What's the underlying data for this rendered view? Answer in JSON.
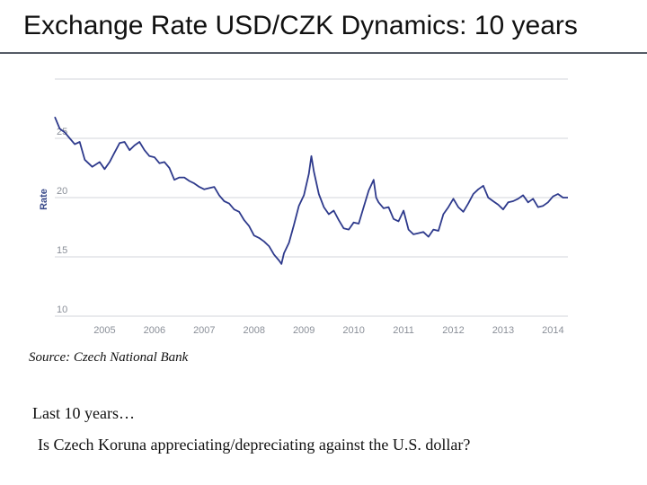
{
  "slide": {
    "title": "Exchange Rate USD/CZK Dynamics: 10 years",
    "source": "Source: Czech National Bank",
    "lines": [
      "Last 10 years…",
      "Is Czech Koruna appreciating/depreciating against the U.S. dollar?"
    ]
  },
  "colors": {
    "series": "#2e3a8c",
    "grid": "#d3d6db",
    "title_rule": "#555b66"
  },
  "chart_data": {
    "type": "line",
    "title": "",
    "xlabel": "",
    "ylabel": "Rate",
    "xlim": [
      2004.0,
      2014.3
    ],
    "ylim": [
      10,
      30
    ],
    "yticks": [
      10,
      15,
      20,
      25
    ],
    "xticks": [
      2005,
      2006,
      2007,
      2008,
      2009,
      2010,
      2011,
      2012,
      2013,
      2014
    ],
    "grid": "horizontal",
    "legend": "none",
    "series": [
      {
        "name": "",
        "x": [
          2004.0,
          2004.1,
          2004.2,
          2004.3,
          2004.4,
          2004.5,
          2004.6,
          2004.75,
          2004.9,
          2005.0,
          2005.1,
          2005.2,
          2005.3,
          2005.4,
          2005.5,
          2005.6,
          2005.7,
          2005.8,
          2005.9,
          2006.0,
          2006.1,
          2006.2,
          2006.3,
          2006.4,
          2006.5,
          2006.6,
          2006.7,
          2006.8,
          2006.9,
          2007.0,
          2007.1,
          2007.2,
          2007.3,
          2007.4,
          2007.5,
          2007.6,
          2007.7,
          2007.8,
          2007.9,
          2008.0,
          2008.1,
          2008.2,
          2008.3,
          2008.4,
          2008.5,
          2008.55,
          2008.6,
          2008.7,
          2008.8,
          2008.9,
          2009.0,
          2009.1,
          2009.15,
          2009.2,
          2009.3,
          2009.4,
          2009.5,
          2009.6,
          2009.7,
          2009.8,
          2009.9,
          2010.0,
          2010.1,
          2010.2,
          2010.3,
          2010.4,
          2010.45,
          2010.5,
          2010.6,
          2010.7,
          2010.8,
          2010.9,
          2011.0,
          2011.1,
          2011.2,
          2011.3,
          2011.4,
          2011.5,
          2011.6,
          2011.7,
          2011.8,
          2011.9,
          2012.0,
          2012.1,
          2012.2,
          2012.3,
          2012.4,
          2012.5,
          2012.6,
          2012.7,
          2012.8,
          2012.9,
          2013.0,
          2013.1,
          2013.2,
          2013.3,
          2013.4,
          2013.5,
          2013.6,
          2013.7,
          2013.8,
          2013.9,
          2014.0,
          2014.1,
          2014.2,
          2014.3
        ],
        "values": [
          26.8,
          25.8,
          25.5,
          25.0,
          24.5,
          24.7,
          23.2,
          22.6,
          23.0,
          22.4,
          23.0,
          23.8,
          24.6,
          24.7,
          24.0,
          24.4,
          24.7,
          24.0,
          23.5,
          23.4,
          22.9,
          23.0,
          22.5,
          21.5,
          21.7,
          21.7,
          21.4,
          21.2,
          20.9,
          20.7,
          20.8,
          20.9,
          20.2,
          19.7,
          19.5,
          19.0,
          18.8,
          18.1,
          17.6,
          16.8,
          16.6,
          16.3,
          15.9,
          15.2,
          14.7,
          14.4,
          15.3,
          16.2,
          17.7,
          19.3,
          20.2,
          22.0,
          23.5,
          22.2,
          20.3,
          19.2,
          18.6,
          18.9,
          18.1,
          17.4,
          17.3,
          17.9,
          17.8,
          19.2,
          20.6,
          21.5,
          20.0,
          19.6,
          19.1,
          19.2,
          18.2,
          18.0,
          18.9,
          17.3,
          16.9,
          17.0,
          17.1,
          16.7,
          17.3,
          17.2,
          18.6,
          19.2,
          19.9,
          19.2,
          18.8,
          19.5,
          20.3,
          20.7,
          21.0,
          20.0,
          19.7,
          19.4,
          19.0,
          19.6,
          19.7,
          19.9,
          20.2,
          19.6,
          19.9,
          19.2,
          19.3,
          19.6,
          20.1,
          20.3,
          20.0,
          20.0
        ]
      }
    ]
  }
}
